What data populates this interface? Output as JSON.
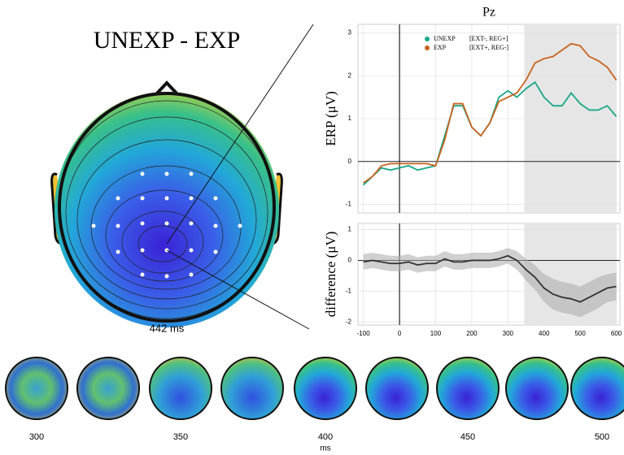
{
  "chart_data": [
    {
      "type": "line",
      "title": "Pz",
      "ylabel": "ERP (μV)",
      "x": [
        -100,
        -75,
        -50,
        -25,
        0,
        25,
        50,
        75,
        100,
        125,
        150,
        175,
        200,
        225,
        250,
        275,
        300,
        325,
        350,
        375,
        400,
        425,
        450,
        475,
        500,
        525,
        550,
        575,
        600
      ],
      "xlim": [
        -115,
        610
      ],
      "ylim": [
        -1.2,
        3.2
      ],
      "yticks": [
        -1,
        0,
        1,
        2,
        3
      ],
      "grid": true,
      "highlight": [
        345,
        600
      ],
      "series": [
        {
          "name": "UNEXP",
          "condition": "[EXT-, REG+]",
          "color": "#1aa88a",
          "values": [
            -0.55,
            -0.35,
            -0.15,
            -0.2,
            -0.15,
            -0.1,
            -0.2,
            -0.15,
            -0.1,
            0.6,
            1.3,
            1.3,
            0.8,
            0.6,
            0.9,
            1.5,
            1.65,
            1.5,
            1.7,
            1.85,
            1.5,
            1.3,
            1.3,
            1.6,
            1.35,
            1.2,
            1.2,
            1.3,
            1.05
          ]
        },
        {
          "name": "EXP",
          "condition": "[EXT+, REG-]",
          "color": "#c8641e",
          "values": [
            -0.5,
            -0.35,
            -0.1,
            -0.05,
            -0.05,
            -0.05,
            -0.05,
            -0.05,
            -0.1,
            0.5,
            1.35,
            1.35,
            0.8,
            0.6,
            0.9,
            1.4,
            1.5,
            1.6,
            1.9,
            2.3,
            2.4,
            2.45,
            2.6,
            2.75,
            2.7,
            2.45,
            2.35,
            2.2,
            1.9
          ]
        }
      ]
    },
    {
      "type": "line",
      "ylabel": "difference (μV)",
      "x": [
        -100,
        -75,
        -50,
        -25,
        0,
        25,
        50,
        75,
        100,
        125,
        150,
        175,
        200,
        225,
        250,
        275,
        300,
        325,
        350,
        375,
        400,
        425,
        450,
        475,
        500,
        525,
        550,
        575,
        600
      ],
      "xlim": [
        -115,
        610
      ],
      "ylim": [
        -2.1,
        1.2
      ],
      "yticks": [
        -2,
        -1,
        0,
        1
      ],
      "xticks": [
        -100,
        0,
        100,
        200,
        300,
        400,
        500,
        600
      ],
      "grid": true,
      "highlight": [
        345,
        600
      ],
      "series": [
        {
          "color": "#333333",
          "values": [
            -0.05,
            0,
            -0.05,
            -0.1,
            -0.1,
            -0.05,
            -0.15,
            -0.1,
            -0.1,
            0.05,
            -0.05,
            -0.05,
            0,
            0,
            0,
            0.05,
            0.15,
            0,
            -0.3,
            -0.55,
            -0.9,
            -1.1,
            -1.2,
            -1.25,
            -1.35,
            -1.2,
            -1.05,
            -0.9,
            -0.85
          ],
          "ci_upper": [
            0.2,
            0.25,
            0.2,
            0.15,
            0.15,
            0.2,
            0.1,
            0.15,
            0.15,
            0.3,
            0.2,
            0.2,
            0.25,
            0.25,
            0.25,
            0.3,
            0.4,
            0.3,
            0.05,
            -0.15,
            -0.45,
            -0.6,
            -0.7,
            -0.75,
            -0.85,
            -0.7,
            -0.55,
            -0.45,
            -0.4
          ],
          "ci_lower": [
            -0.3,
            -0.25,
            -0.3,
            -0.35,
            -0.35,
            -0.3,
            -0.4,
            -0.35,
            -0.35,
            -0.2,
            -0.3,
            -0.3,
            -0.25,
            -0.25,
            -0.25,
            -0.2,
            -0.1,
            -0.3,
            -0.65,
            -0.95,
            -1.35,
            -1.6,
            -1.7,
            -1.75,
            -1.85,
            -1.7,
            -1.55,
            -1.35,
            -1.3
          ]
        }
      ]
    }
  ],
  "topomap": {
    "title": "UNEXP - EXP",
    "time_label": "442 ms"
  },
  "timeline": {
    "labels": [
      "300",
      "350",
      "400",
      "450",
      "500"
    ],
    "unit": "ms"
  }
}
